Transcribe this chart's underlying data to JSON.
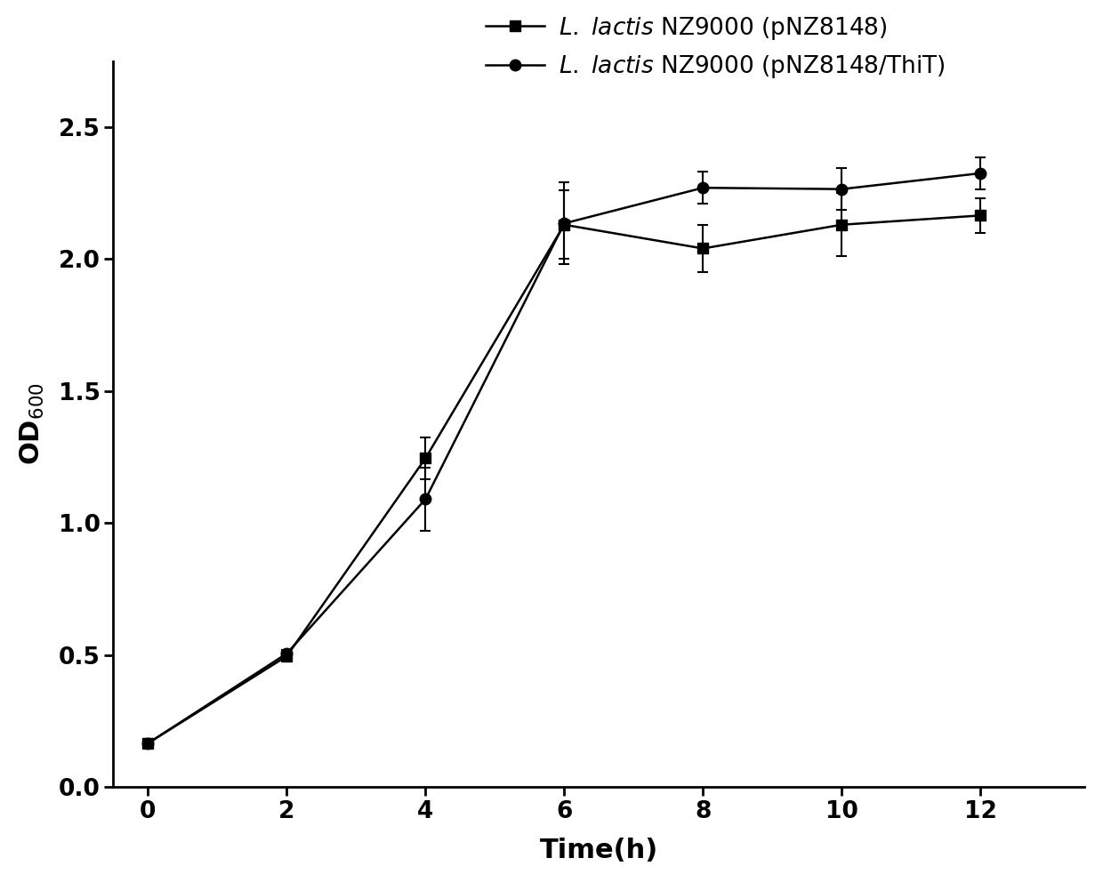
{
  "x": [
    0,
    2,
    4,
    6,
    8,
    10,
    12
  ],
  "series1_y": [
    0.165,
    0.495,
    1.245,
    2.13,
    2.04,
    2.13,
    2.165
  ],
  "series1_yerr": [
    0.01,
    0.015,
    0.08,
    0.13,
    0.09,
    0.12,
    0.065
  ],
  "series2_y": [
    0.165,
    0.505,
    1.09,
    2.135,
    2.27,
    2.265,
    2.325
  ],
  "series2_yerr": [
    0.01,
    0.015,
    0.12,
    0.155,
    0.06,
    0.08,
    0.06
  ],
  "xlabel": "Time(h)",
  "ylabel": "OD$_{600}$",
  "xlim": [
    -0.5,
    13.5
  ],
  "ylim": [
    0.0,
    2.75
  ],
  "xticks": [
    0,
    2,
    4,
    6,
    8,
    10,
    12
  ],
  "yticks": [
    0.0,
    0.5,
    1.0,
    1.5,
    2.0,
    2.5
  ],
  "line_color": "#000000",
  "marker1": "-s",
  "marker2": "-o",
  "marker_size": 9,
  "line_width": 1.8,
  "capsize": 4,
  "fig_width": 12.4,
  "fig_height": 9.92,
  "dpi": 100,
  "legend_fontsize": 19,
  "tick_fontsize": 19,
  "axis_label_fontsize": 22
}
